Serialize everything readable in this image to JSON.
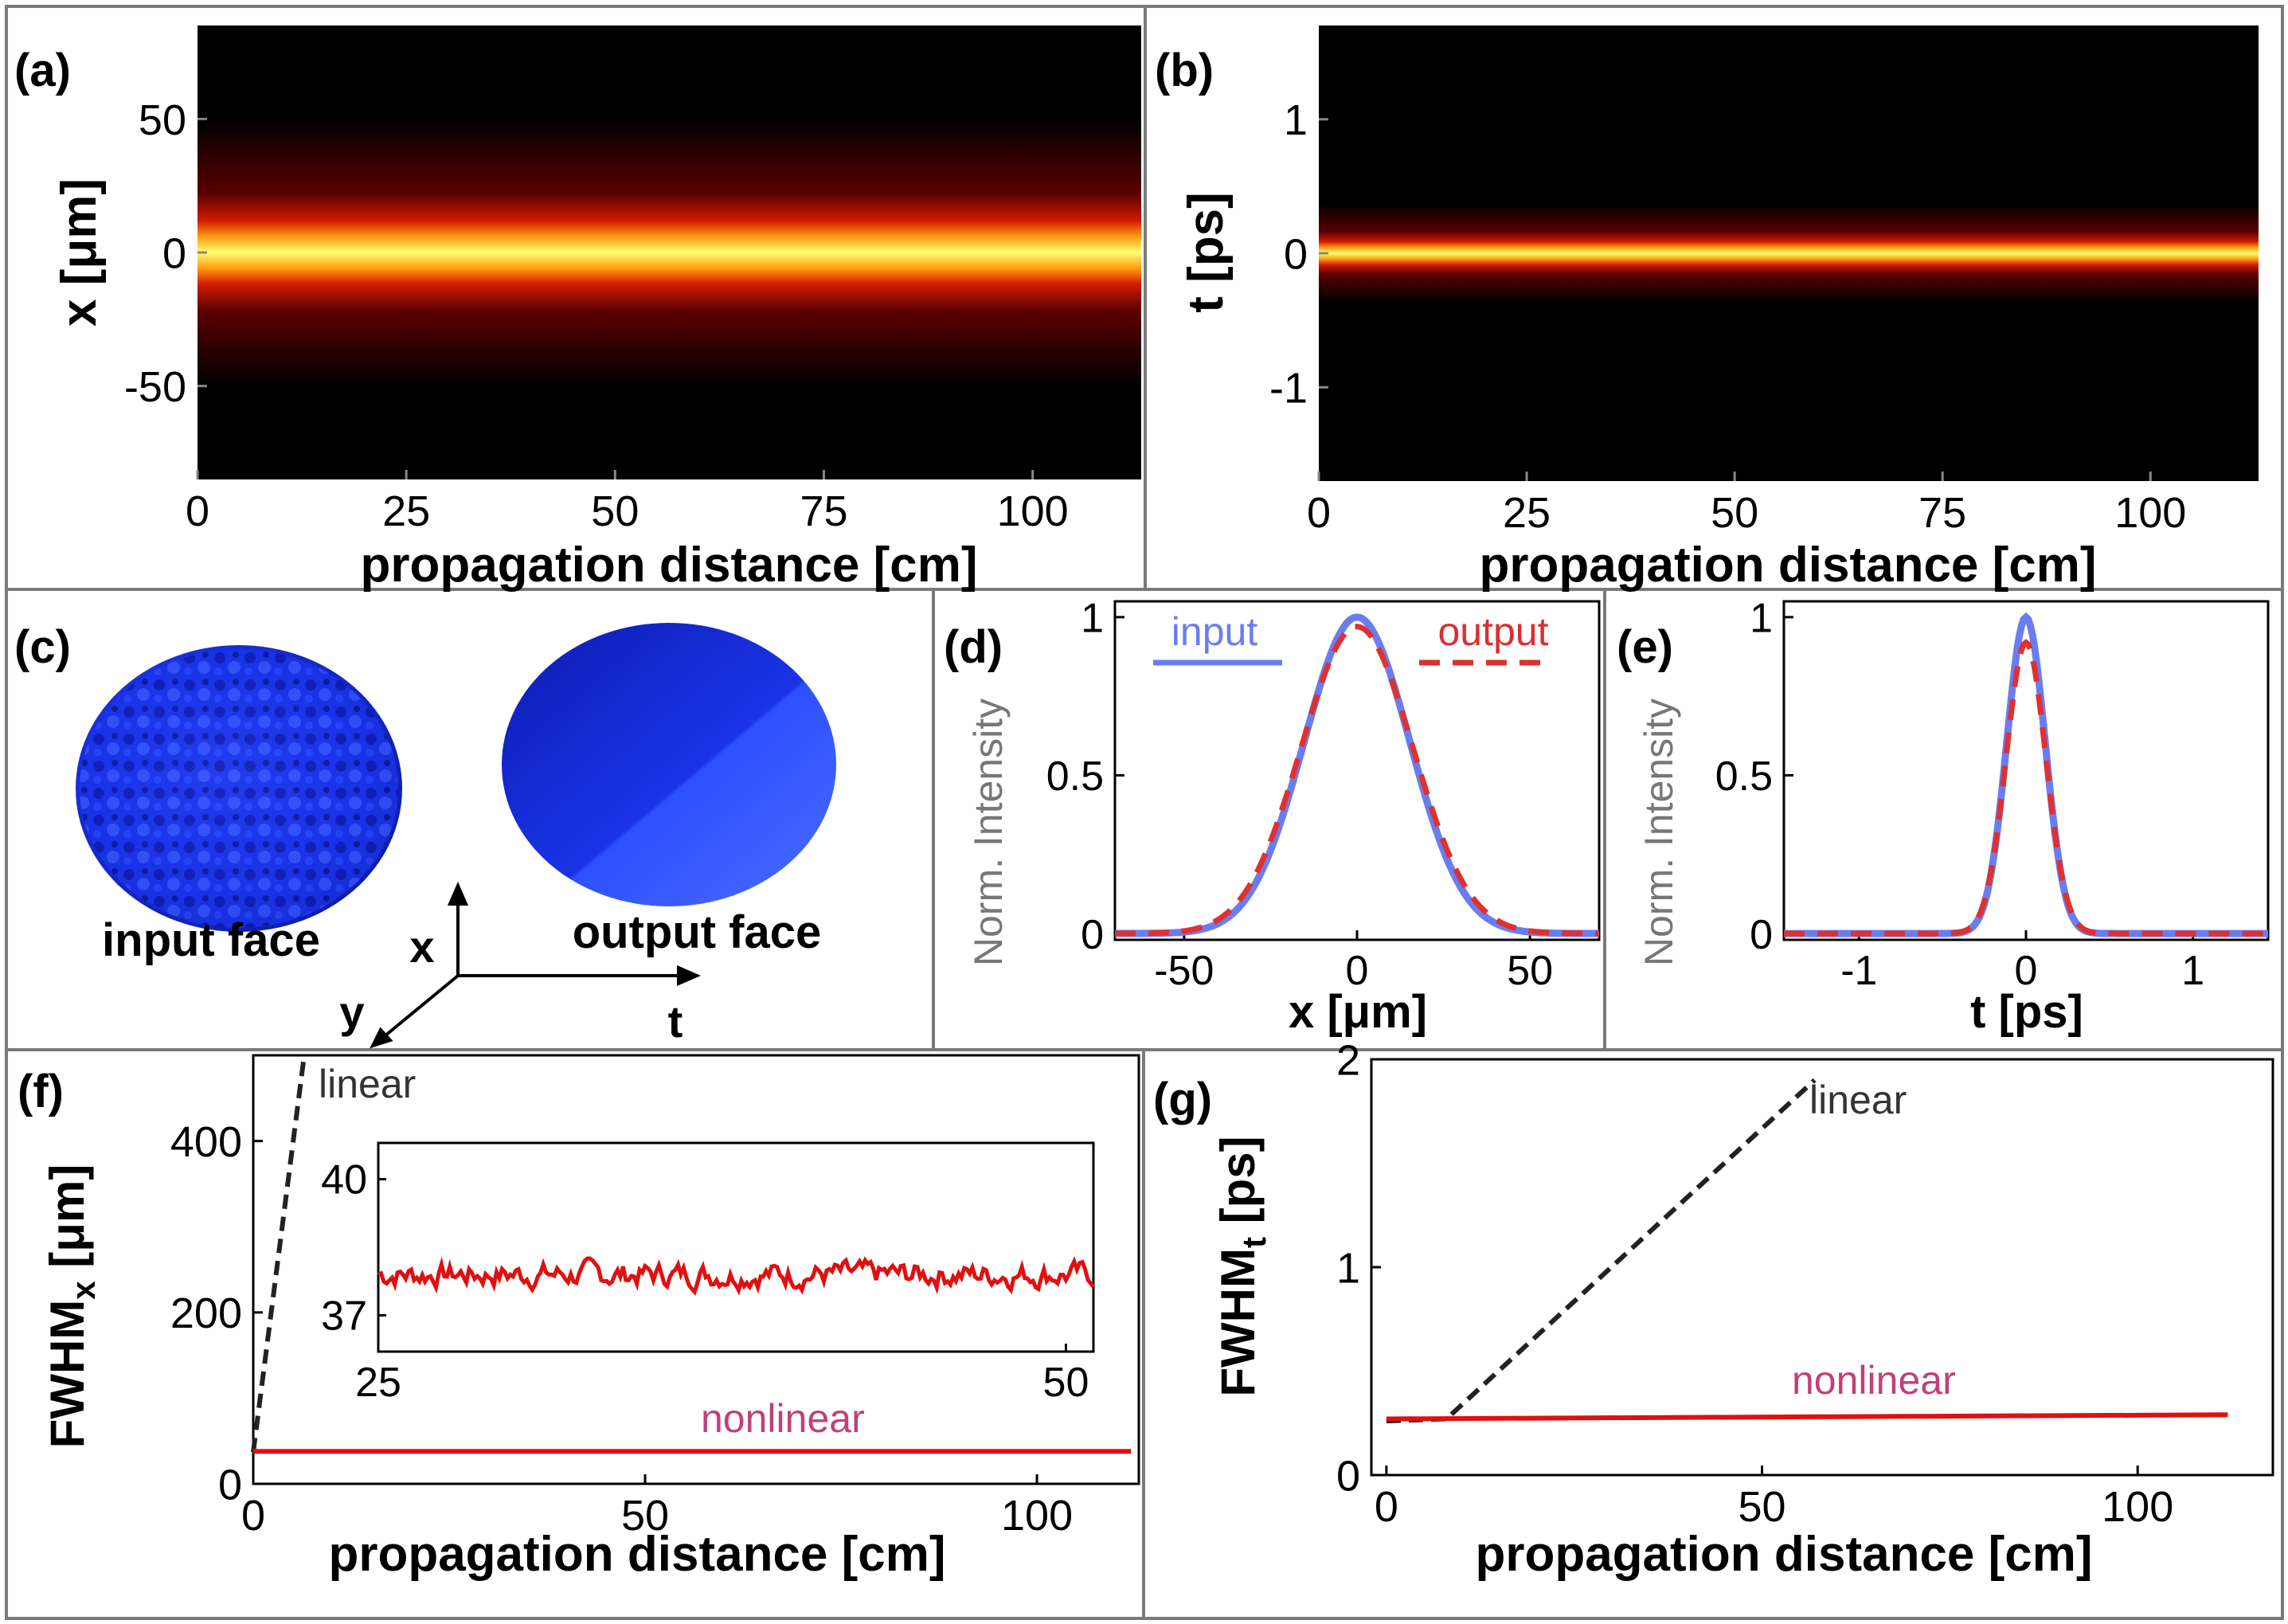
{
  "colors": {
    "heatmap_background": "#000000",
    "beam_core": "#ffff66",
    "beam_edge": "#cc1100",
    "surface_blue": "#2440ff",
    "input_line": "#6a7df0",
    "output_line": "#e03030",
    "nonlinear_line": "#e01010",
    "linear_line": "#222222",
    "nonlinear_label": "#c0407a",
    "linear_label": "#333333",
    "axis_text": "#000000",
    "grey_ylabel": "#777777"
  },
  "panels": {
    "a": {
      "tag": "(a)",
      "xlabel": "propagation distance [cm]",
      "ylabel": "x [μm]"
    },
    "b": {
      "tag": "(b)",
      "xlabel": "propagation distance [cm]",
      "ylabel": "t [ps]"
    },
    "c": {
      "tag": "(c)",
      "input_label": "input face",
      "output_label": "output face",
      "axis_x": "x",
      "axis_y": "y",
      "axis_t": "t"
    },
    "d": {
      "tag": "(d)",
      "xlabel": "x [μm]",
      "ylabel": "Norm. Intensity",
      "legend_input": "input",
      "legend_output": "output"
    },
    "e": {
      "tag": "(e)",
      "xlabel": "t [ps]",
      "ylabel": "Norm. Intensity"
    },
    "f": {
      "tag": "(f)",
      "xlabel": "propagation distance [cm]",
      "ylabel_main": "FWHM",
      "ylabel_sub": "x",
      "ylabel_unit": " [μm]",
      "label_linear": "linear",
      "label_nonlinear": "nonlinear"
    },
    "g": {
      "tag": "(g)",
      "xlabel": "propagation distance [cm]",
      "ylabel_main": "FWHM",
      "ylabel_sub": "t",
      "ylabel_unit": " [ps]",
      "label_linear": "linear",
      "label_nonlinear": "nonlinear"
    }
  },
  "chart_data": [
    {
      "id": "a",
      "type": "heatmap",
      "title": "",
      "xlabel": "propagation distance [cm]",
      "ylabel": "x [μm]",
      "xlim": [
        0,
        113
      ],
      "ylim": [
        -85,
        85
      ],
      "xticks": [
        0,
        25,
        50,
        75,
        100
      ],
      "yticks": [
        50,
        0,
        -50
      ],
      "beam_center": 0,
      "beam_fwhm": 37
    },
    {
      "id": "b",
      "type": "heatmap",
      "title": "",
      "xlabel": "propagation distance [cm]",
      "ylabel": "t [ps]",
      "xlim": [
        0,
        113
      ],
      "ylim": [
        -1.7,
        1.7
      ],
      "xticks": [
        0,
        25,
        50,
        75,
        100
      ],
      "yticks": [
        1,
        0,
        -1
      ],
      "beam_center": 0,
      "beam_fwhm": 0.27
    },
    {
      "id": "d",
      "type": "line",
      "xlabel": "x [μm]",
      "ylabel": "Norm. Intensity",
      "xlim": [
        -70,
        70
      ],
      "ylim": [
        -0.02,
        1.05
      ],
      "xticks": [
        -50,
        0,
        50
      ],
      "yticks": [
        0,
        0.5,
        1
      ],
      "series": [
        {
          "name": "input",
          "style": "solid",
          "center": 0,
          "fwhm": 36,
          "peak": 1.0
        },
        {
          "name": "output",
          "style": "dashed",
          "center": 0,
          "fwhm": 38,
          "peak": 0.97
        }
      ]
    },
    {
      "id": "e",
      "type": "line",
      "xlabel": "t [ps]",
      "ylabel": "Norm. Intensity",
      "xlim": [
        -1.45,
        1.45
      ],
      "ylim": [
        -0.02,
        1.05
      ],
      "xticks": [
        -1,
        0,
        1
      ],
      "yticks": [
        0,
        0.5,
        1
      ],
      "series": [
        {
          "name": "input",
          "style": "solid",
          "center": 0,
          "fwhm": 0.27,
          "peak": 1.0
        },
        {
          "name": "output",
          "style": "dashed",
          "center": 0,
          "fwhm": 0.28,
          "peak": 0.92
        }
      ]
    },
    {
      "id": "f",
      "type": "line",
      "xlabel": "propagation distance [cm]",
      "ylabel": "FWHMx [μm]",
      "xlim": [
        0,
        113
      ],
      "ylim": [
        0,
        500
      ],
      "xticks": [
        0,
        50,
        100
      ],
      "yticks": [
        0,
        200,
        400
      ],
      "series": [
        {
          "name": "linear",
          "style": "dashed",
          "x": [
            0,
            6.5
          ],
          "y": [
            37,
            500
          ]
        },
        {
          "name": "nonlinear",
          "style": "solid",
          "x": [
            0,
            112
          ],
          "y": [
            37.9,
            37.9
          ]
        }
      ],
      "inset": {
        "xlim": [
          25,
          51
        ],
        "ylim": [
          36.2,
          40.8
        ],
        "xticks": [
          25,
          50
        ],
        "yticks": [
          37,
          40
        ],
        "series_name": "nonlinear",
        "mean": 37.9,
        "noise_amplitude": 0.35
      }
    },
    {
      "id": "g",
      "type": "line",
      "xlabel": "propagation distance [cm]",
      "ylabel": "FWHMt [ps]",
      "xlim": [
        -2,
        118
      ],
      "ylim": [
        0,
        2
      ],
      "xticks": [
        0,
        50,
        100
      ],
      "yticks": [
        0,
        1,
        2
      ],
      "series": [
        {
          "name": "linear",
          "style": "dashed",
          "x": [
            0,
            8,
            57
          ],
          "y": [
            0.26,
            0.27,
            1.9
          ]
        },
        {
          "name": "nonlinear",
          "style": "solid",
          "x": [
            0,
            112
          ],
          "y": [
            0.27,
            0.29
          ]
        }
      ]
    }
  ]
}
